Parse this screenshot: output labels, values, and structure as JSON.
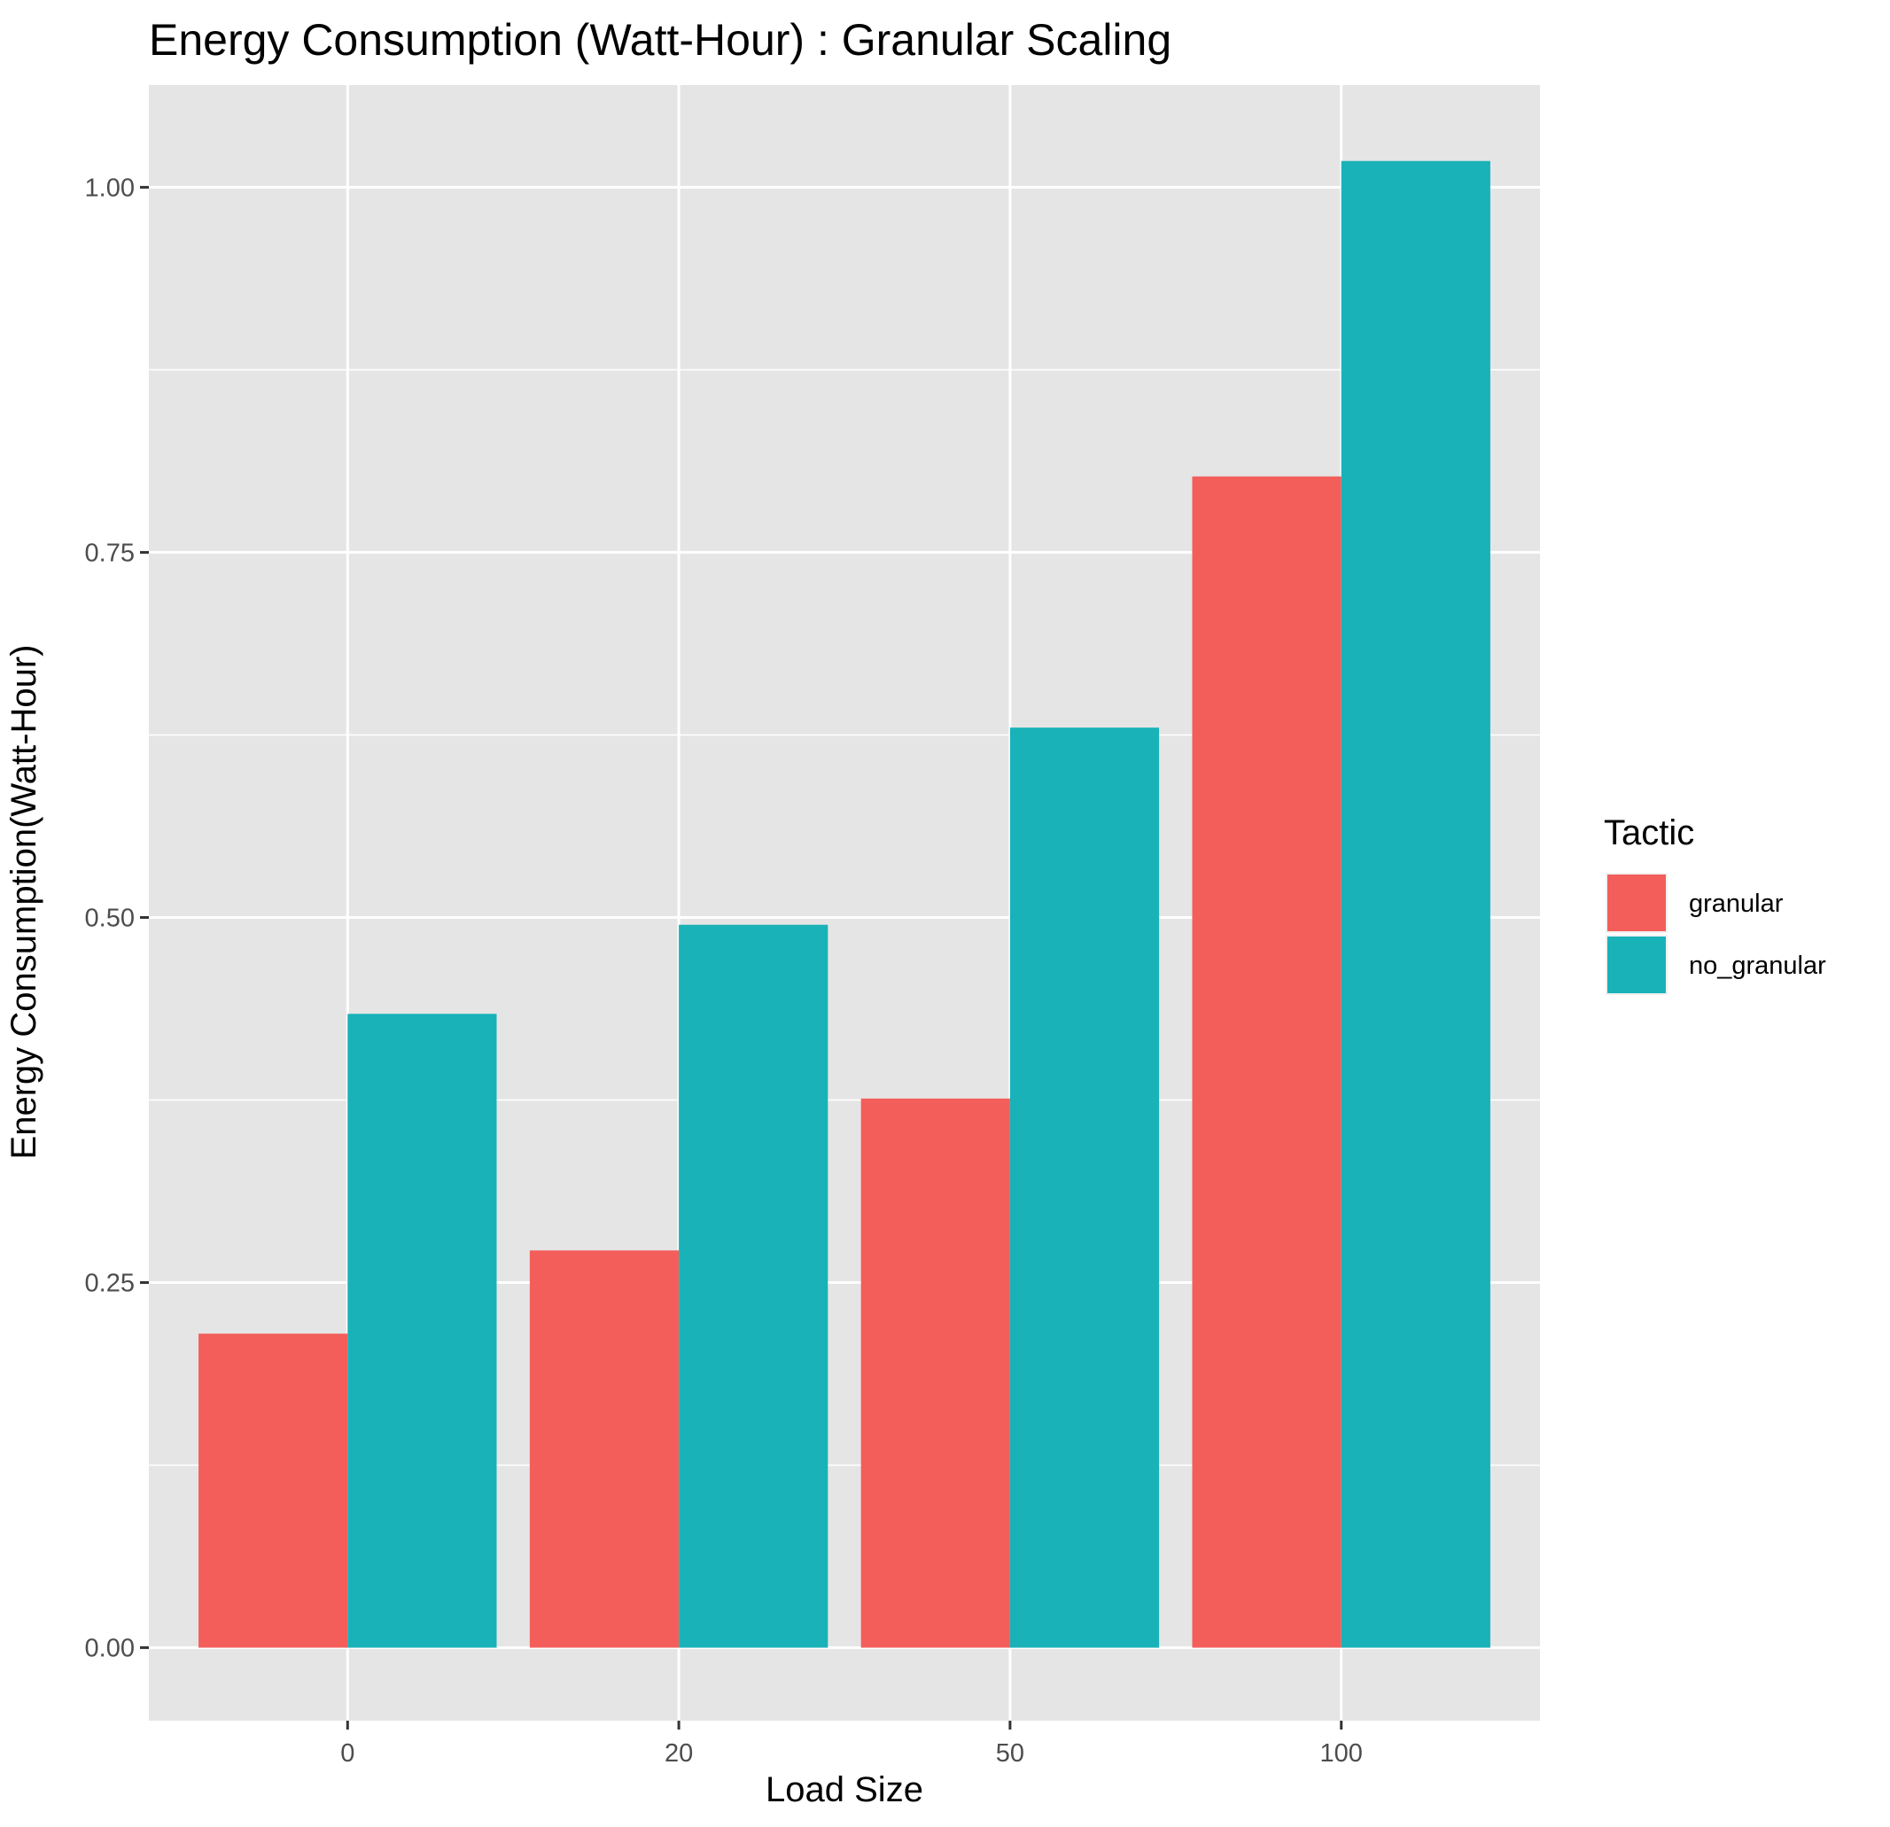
{
  "chart_data": {
    "type": "bar",
    "title": "Energy Consumption (Watt-Hour) : Granular Scaling",
    "xlabel": "Load Size",
    "ylabel": "Energy Consumption(Watt-Hour)",
    "categories": [
      "0",
      "20",
      "50",
      "100"
    ],
    "ylim": [
      -0.05,
      1.07
    ],
    "yticks": [
      0.0,
      0.25,
      0.5,
      0.75,
      1.0
    ],
    "ytick_labels": [
      "0.00",
      "0.25",
      "0.50",
      "0.75",
      "1.00"
    ],
    "grid": true,
    "legend": {
      "title": "Tactic",
      "position": "right"
    },
    "series": [
      {
        "name": "granular",
        "color": "#F35E5A",
        "values": [
          0.215,
          0.272,
          0.376,
          0.802
        ]
      },
      {
        "name": "no_granular",
        "color": "#19B2B8",
        "values": [
          0.434,
          0.495,
          0.63,
          1.018
        ]
      }
    ]
  }
}
